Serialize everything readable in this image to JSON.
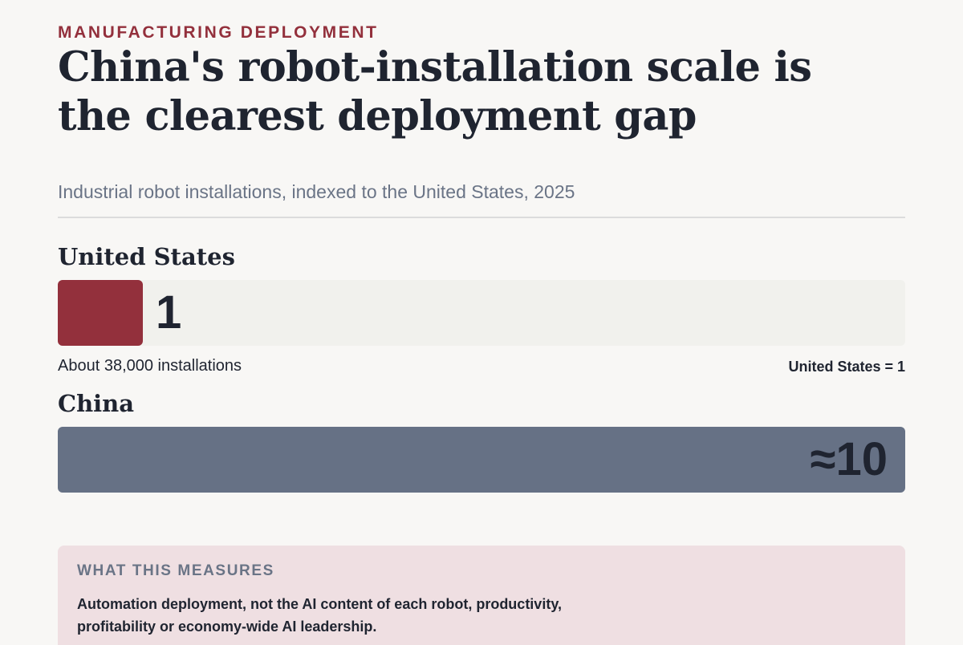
{
  "kicker": "MANUFACTURING DEPLOYMENT",
  "title": "China's robot-installation scale is the clearest deployment gap",
  "subtitle": "Industrial robot installations, indexed to the United States, 2025",
  "colors": {
    "accent": "#93303c",
    "china_bar": "#667185",
    "track": "#f1f1ed",
    "callout_bg": "#efdfe2"
  },
  "chart_data": {
    "type": "bar",
    "orientation": "horizontal",
    "categories": [
      "United States",
      "China"
    ],
    "values": [
      1,
      10
    ],
    "value_labels": [
      "1",
      "≈10"
    ],
    "xlim": [
      0,
      10
    ],
    "grid": false,
    "legend": "none"
  },
  "notes": {
    "us_detail": "About 38,000 installations",
    "index_base": "United States = 1"
  },
  "callout": {
    "heading": "WHAT THIS MEASURES",
    "body": "Automation deployment, not the AI content of each robot, productivity, profitability or economy-wide AI leadership."
  }
}
